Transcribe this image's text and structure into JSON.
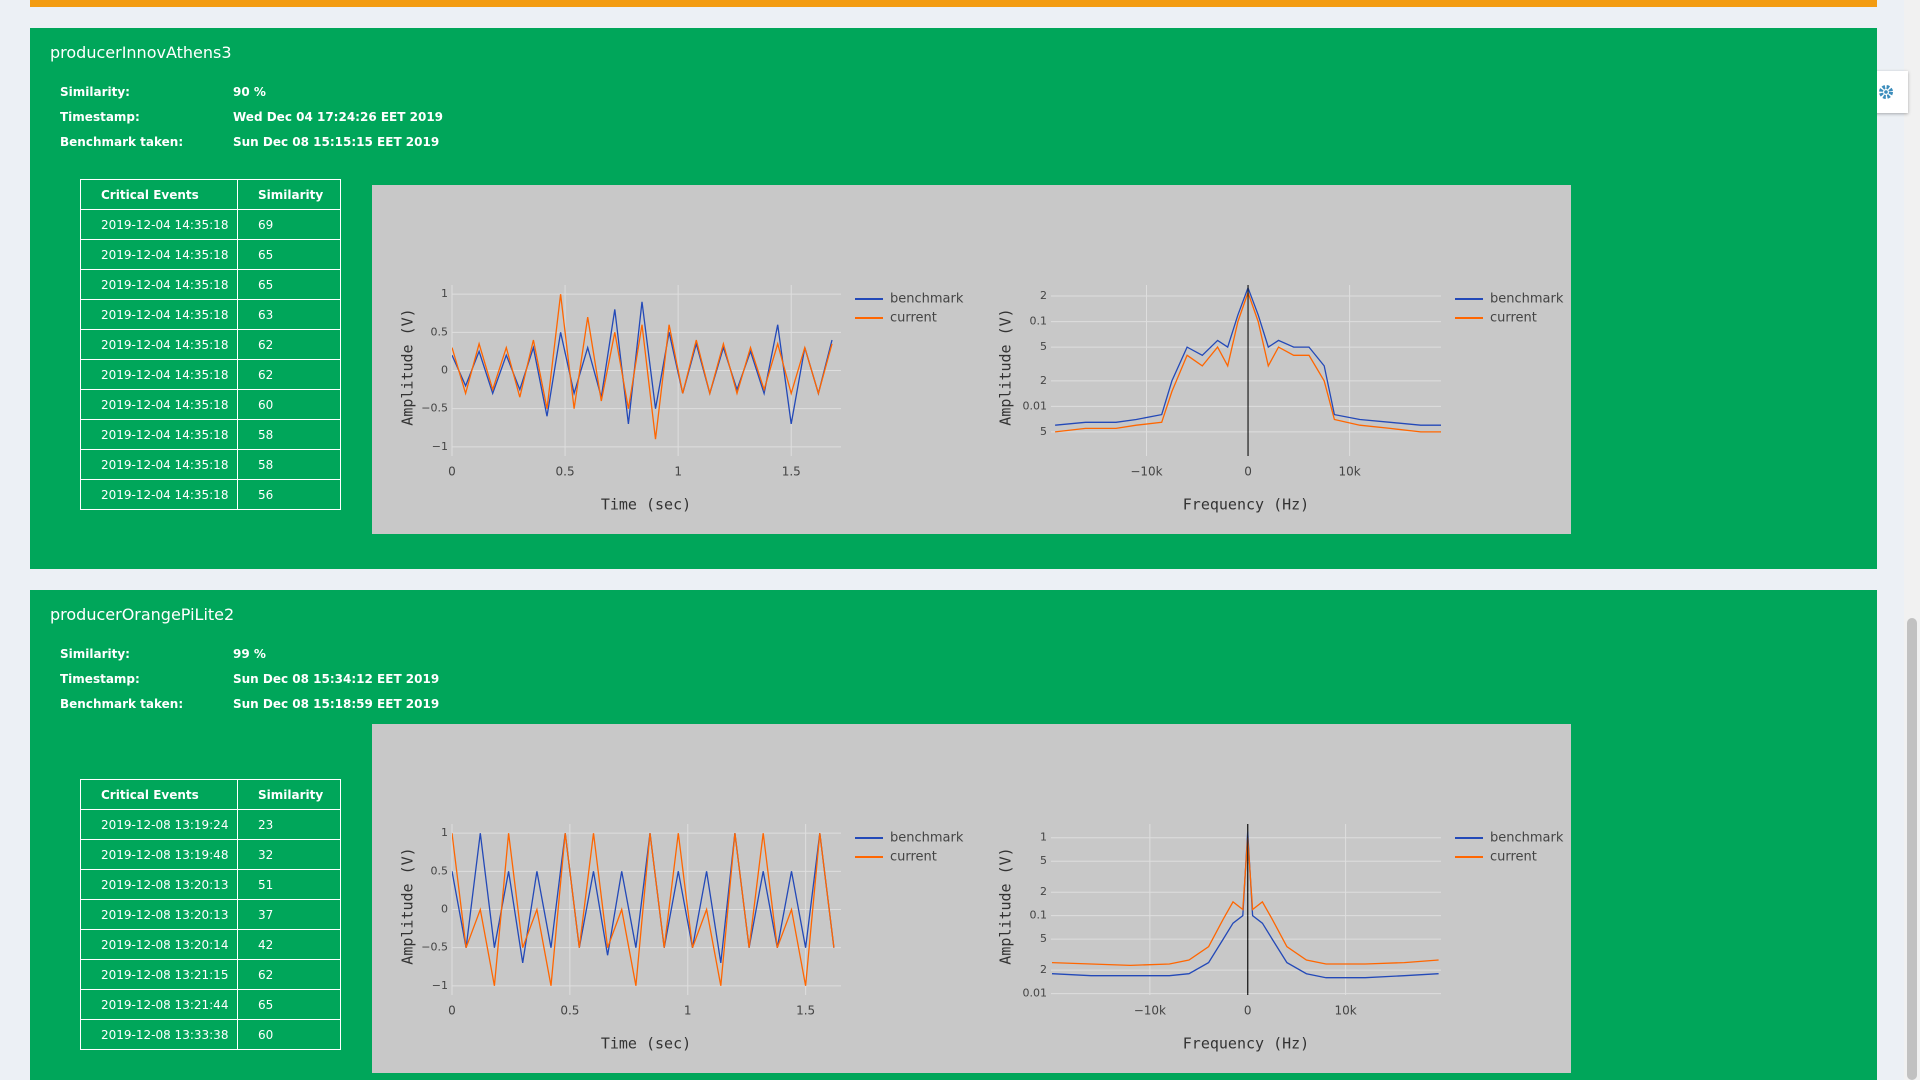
{
  "cards": [
    {
      "title": "producerInnovAthens3",
      "info": [
        {
          "label": "Similarity:",
          "value": "90 %"
        },
        {
          "label": "Timestamp:",
          "value": "Wed Dec 04 17:24:26 EET 2019"
        },
        {
          "label": "Benchmark taken:",
          "value": "Sun Dec 08 15:15:15 EET 2019"
        }
      ],
      "table": {
        "header": [
          "Critical Events",
          "Similarity"
        ],
        "rows": [
          [
            "2019-12-04 14:35:18",
            69
          ],
          [
            "2019-12-04 14:35:18",
            65
          ],
          [
            "2019-12-04 14:35:18",
            65
          ],
          [
            "2019-12-04 14:35:18",
            63
          ],
          [
            "2019-12-04 14:35:18",
            62
          ],
          [
            "2019-12-04 14:35:18",
            62
          ],
          [
            "2019-12-04 14:35:18",
            60
          ],
          [
            "2019-12-04 14:35:18",
            58
          ],
          [
            "2019-12-04 14:35:18",
            58
          ],
          [
            "2019-12-04 14:35:18",
            56
          ]
        ]
      },
      "charts": [
        {
          "type": "line",
          "xlabel": "Time (sec)",
          "ylabel": "Amplitude (V)",
          "log_y": false,
          "grid": true,
          "xlim": [
            0,
            1.72
          ],
          "ylim": [
            -1.12,
            1.12
          ],
          "xticks": [
            0,
            0.5,
            1,
            1.5
          ],
          "yticks": [
            {
              "value": -1,
              "label": "−1"
            },
            {
              "value": -0.5,
              "label": "−0.5"
            },
            0,
            0.5,
            1
          ],
          "x": [
            0,
            0.06,
            0.12,
            0.18,
            0.24,
            0.3,
            0.36,
            0.42,
            0.48,
            0.54,
            0.6,
            0.66,
            0.72,
            0.78,
            0.84,
            0.9,
            0.96,
            1.02,
            1.08,
            1.14,
            1.2,
            1.26,
            1.32,
            1.38,
            1.44,
            1.5,
            1.56,
            1.62,
            1.68
          ],
          "series": [
            {
              "name": "benchmark",
              "color": "#2349b8",
              "values": [
                0.2,
                -0.2,
                0.25,
                -0.3,
                0.2,
                -0.25,
                0.3,
                -0.6,
                0.5,
                -0.3,
                0.3,
                -0.35,
                0.8,
                -0.7,
                0.9,
                -0.5,
                0.5,
                -0.3,
                0.35,
                -0.3,
                0.3,
                -0.25,
                0.25,
                -0.3,
                0.6,
                -0.7,
                0.3,
                -0.3,
                0.4
              ]
            },
            {
              "name": "current",
              "color": "#ff6600",
              "values": [
                0.3,
                -0.3,
                0.35,
                -0.25,
                0.3,
                -0.35,
                0.4,
                -0.5,
                1.0,
                -0.5,
                0.7,
                -0.4,
                0.5,
                -0.5,
                0.6,
                -0.9,
                0.6,
                -0.3,
                0.4,
                -0.3,
                0.35,
                -0.3,
                0.3,
                -0.25,
                0.35,
                -0.3,
                0.3,
                -0.3,
                0.35
              ]
            }
          ]
        },
        {
          "type": "line",
          "xlabel": "Frequency (Hz)",
          "ylabel": "Amplitude (V)",
          "log_y": true,
          "grid": true,
          "zeroline_x": true,
          "xlim": [
            -19400,
            19000
          ],
          "ylim": [
            0.0026,
            0.27
          ],
          "xticks": [
            {
              "value": -10000,
              "label": "−10k"
            },
            0,
            {
              "value": 10000,
              "label": "10k"
            }
          ],
          "yticks": [
            {
              "value": 0.2,
              "label": "2"
            },
            0.1,
            {
              "value": 0.05,
              "label": "5"
            },
            {
              "value": 0.02,
              "label": "2"
            },
            0.01,
            {
              "value": 0.005,
              "label": "5"
            }
          ],
          "x": [
            -19000,
            -16000,
            -13000,
            -11000,
            -8500,
            -7500,
            -6000,
            -4500,
            -3000,
            -2000,
            -1000,
            0,
            1000,
            2000,
            3000,
            4500,
            6000,
            7500,
            8500,
            11000,
            14000,
            17000,
            19000
          ],
          "series": [
            {
              "name": "benchmark",
              "color": "#2349b8",
              "values": [
                0.006,
                0.0065,
                0.0065,
                0.007,
                0.008,
                0.02,
                0.05,
                0.04,
                0.06,
                0.05,
                0.12,
                0.25,
                0.12,
                0.05,
                0.06,
                0.05,
                0.05,
                0.03,
                0.008,
                0.007,
                0.0065,
                0.006,
                0.006
              ]
            },
            {
              "name": "current",
              "color": "#ff6600",
              "values": [
                0.005,
                0.0055,
                0.0055,
                0.006,
                0.0065,
                0.015,
                0.04,
                0.03,
                0.05,
                0.03,
                0.1,
                0.22,
                0.1,
                0.03,
                0.05,
                0.04,
                0.04,
                0.02,
                0.007,
                0.006,
                0.0055,
                0.005,
                0.005
              ]
            }
          ]
        }
      ]
    },
    {
      "title": "producerOrangePiLite2",
      "info": [
        {
          "label": "Similarity:",
          "value": "99 %"
        },
        {
          "label": "Timestamp:",
          "value": "Sun Dec 08 15:34:12 EET 2019"
        },
        {
          "label": "Benchmark taken:",
          "value": "Sun Dec 08 15:18:59 EET 2019"
        }
      ],
      "table": {
        "header": [
          "Critical Events",
          "Similarity"
        ],
        "rows": [
          [
            "2019-12-08 13:19:24",
            23
          ],
          [
            "2019-12-08 13:19:48",
            32
          ],
          [
            "2019-12-08 13:20:13",
            51
          ],
          [
            "2019-12-08 13:20:13",
            37
          ],
          [
            "2019-12-08 13:20:14",
            42
          ],
          [
            "2019-12-08 13:21:15",
            62
          ],
          [
            "2019-12-08 13:21:44",
            65
          ],
          [
            "2019-12-08 13:33:38",
            60
          ]
        ]
      },
      "charts": [
        {
          "type": "line",
          "xlabel": "Time (sec)",
          "ylabel": "Amplitude (V)",
          "log_y": false,
          "grid": true,
          "xlim": [
            0,
            1.65
          ],
          "ylim": [
            -1.12,
            1.12
          ],
          "xticks": [
            0,
            0.5,
            1,
            1.5
          ],
          "yticks": [
            {
              "value": -1,
              "label": "−1"
            },
            {
              "value": -0.5,
              "label": "−0.5"
            },
            0,
            0.5,
            1
          ],
          "x": [
            0,
            0.06,
            0.12,
            0.18,
            0.24,
            0.3,
            0.36,
            0.42,
            0.48,
            0.54,
            0.6,
            0.66,
            0.72,
            0.78,
            0.84,
            0.9,
            0.96,
            1.02,
            1.08,
            1.14,
            1.2,
            1.26,
            1.32,
            1.38,
            1.44,
            1.5,
            1.56,
            1.62
          ],
          "series": [
            {
              "name": "benchmark",
              "color": "#2349b8",
              "values": [
                0.5,
                -0.5,
                1,
                -0.5,
                0.5,
                -0.7,
                0.5,
                -0.5,
                1,
                -0.5,
                0.5,
                -0.6,
                0.5,
                -0.5,
                1,
                -0.5,
                0.5,
                -0.5,
                0.5,
                -0.7,
                1,
                -0.5,
                0.5,
                -0.5,
                0.5,
                -0.5,
                1,
                -0.5
              ]
            },
            {
              "name": "current",
              "color": "#ff6600",
              "values": [
                1,
                -0.5,
                0,
                -1,
                1,
                -0.5,
                0,
                -1,
                1,
                -0.5,
                1,
                -0.5,
                0,
                -1,
                1,
                -0.5,
                1,
                -0.5,
                0,
                -1,
                1,
                -0.5,
                1,
                -0.5,
                0,
                -1,
                1,
                -0.5
              ]
            }
          ]
        },
        {
          "type": "line",
          "xlabel": "Frequency (Hz)",
          "ylabel": "Amplitude (V)",
          "log_y": true,
          "grid": true,
          "zeroline_x": true,
          "xlim": [
            -20100,
            19750
          ],
          "ylim": [
            0.0096,
            1.5
          ],
          "xticks": [
            {
              "value": -10000,
              "label": "−10k"
            },
            0,
            {
              "value": 10000,
              "label": "10k"
            }
          ],
          "yticks": [
            1,
            {
              "value": 0.5,
              "label": "5"
            },
            {
              "value": 0.2,
              "label": "2"
            },
            0.1,
            {
              "value": 0.05,
              "label": "5"
            },
            {
              "value": 0.02,
              "label": "2"
            },
            0.01
          ],
          "x": [
            -20000,
            -16000,
            -12000,
            -8000,
            -6000,
            -4000,
            -2500,
            -1500,
            -500,
            0,
            500,
            1500,
            2500,
            4000,
            6000,
            8000,
            12000,
            16000,
            19500
          ],
          "series": [
            {
              "name": "benchmark",
              "color": "#2349b8",
              "values": [
                0.018,
                0.017,
                0.017,
                0.017,
                0.018,
                0.025,
                0.05,
                0.08,
                0.1,
                1.2,
                0.1,
                0.08,
                0.05,
                0.025,
                0.018,
                0.016,
                0.016,
                0.017,
                0.018
              ]
            },
            {
              "name": "current",
              "color": "#ff6600",
              "values": [
                0.025,
                0.024,
                0.023,
                0.024,
                0.027,
                0.04,
                0.09,
                0.15,
                0.12,
                1.0,
                0.12,
                0.15,
                0.09,
                0.04,
                0.027,
                0.024,
                0.024,
                0.025,
                0.027
              ]
            }
          ]
        }
      ]
    }
  ]
}
